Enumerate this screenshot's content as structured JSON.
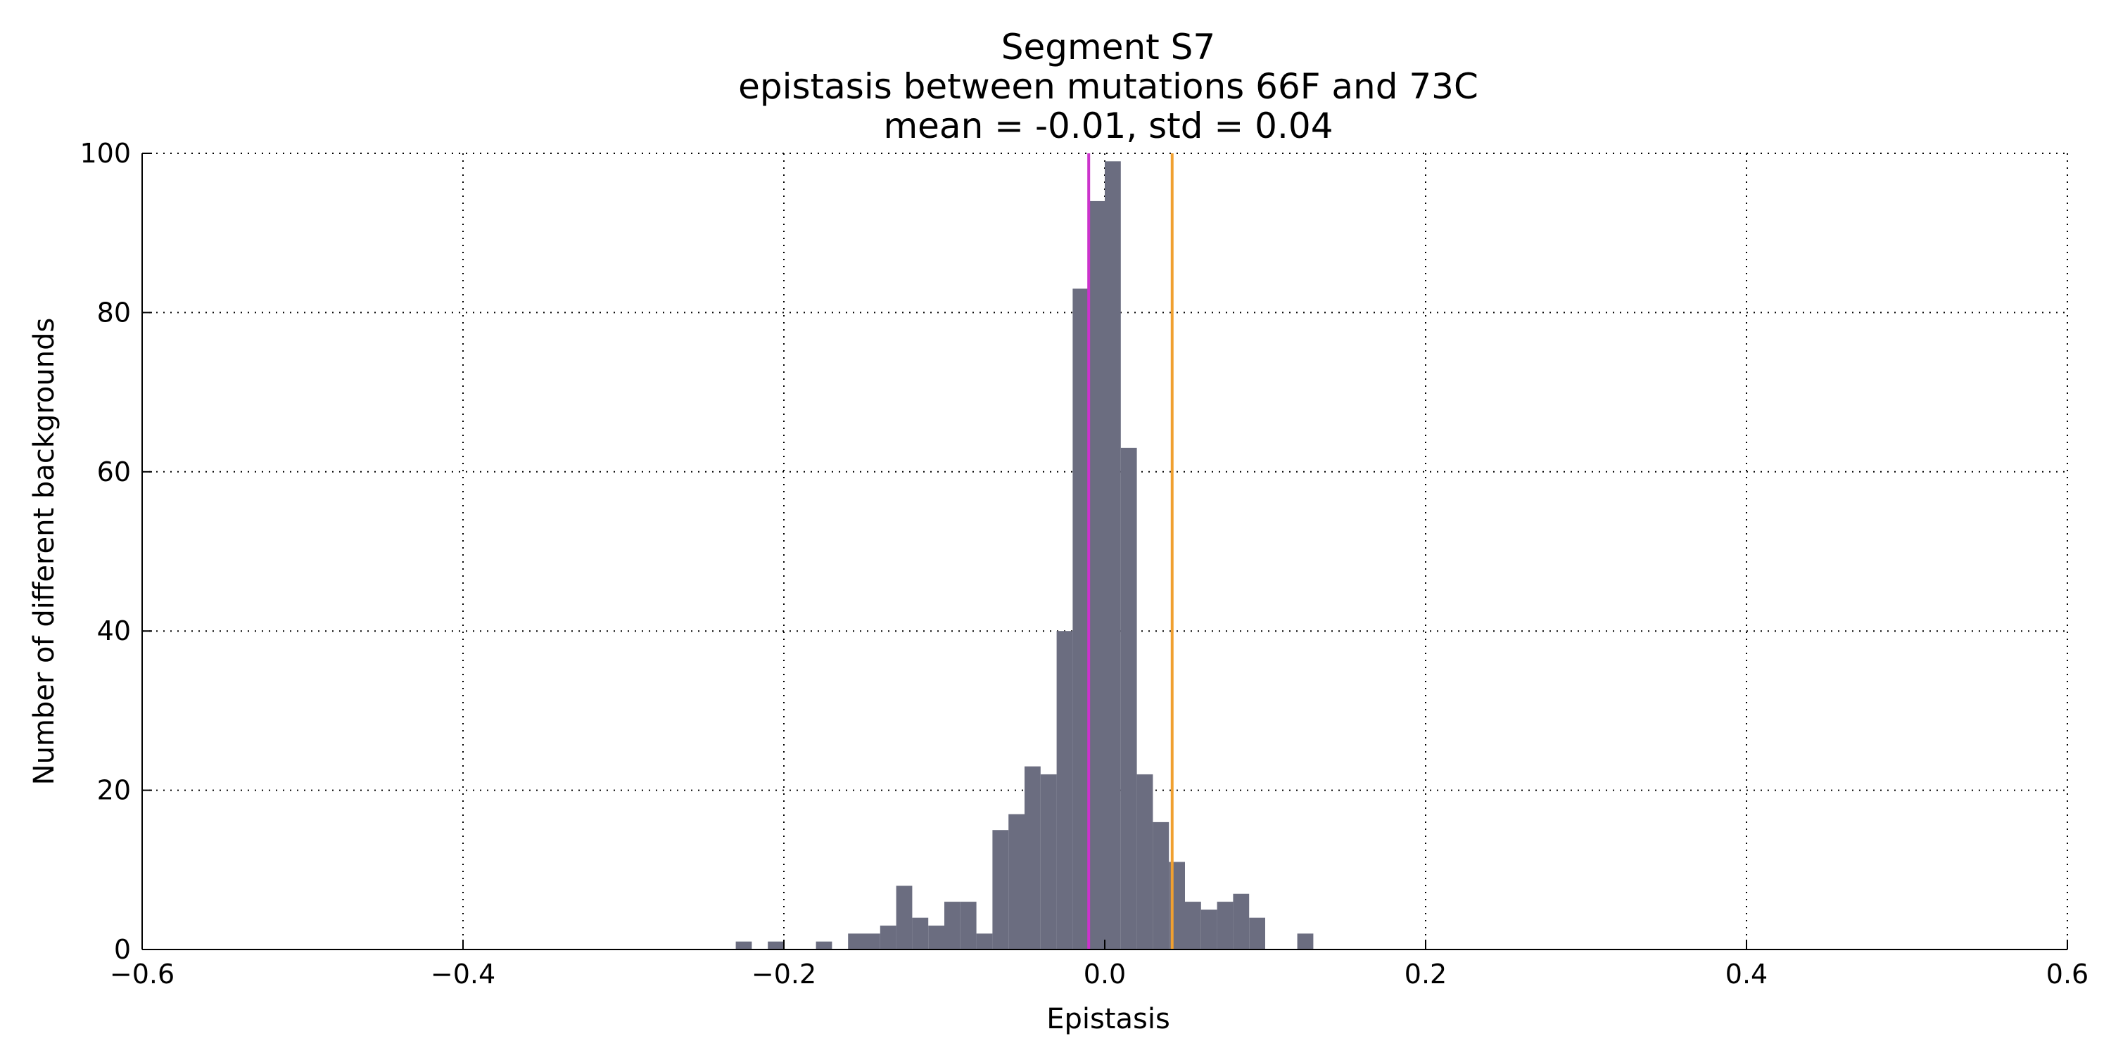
{
  "chart_data": {
    "type": "bar",
    "title_lines": [
      "Segment S7",
      "epistasis between mutations 66F and 73C",
      "mean = -0.01, std = 0.04"
    ],
    "xlabel": "Epistasis",
    "ylabel": "Number of different backgrounds",
    "xlim": [
      -0.6,
      0.6
    ],
    "ylim": [
      0,
      100
    ],
    "xticks": [
      -0.6,
      -0.4,
      -0.2,
      0.0,
      0.2,
      0.4,
      0.6
    ],
    "xtick_labels": [
      "−0.6",
      "−0.4",
      "−0.2",
      "0.0",
      "0.2",
      "0.4",
      "0.6"
    ],
    "yticks": [
      0,
      20,
      40,
      60,
      80,
      100
    ],
    "ytick_labels": [
      "0",
      "20",
      "40",
      "60",
      "80",
      "100"
    ],
    "grid": true,
    "bar_color": "#6b6d80",
    "bin_width": 0.01,
    "bins": [
      {
        "x0": -0.23,
        "count": 1
      },
      {
        "x0": -0.21,
        "count": 1
      },
      {
        "x0": -0.18,
        "count": 1
      },
      {
        "x0": -0.16,
        "count": 2
      },
      {
        "x0": -0.15,
        "count": 2
      },
      {
        "x0": -0.14,
        "count": 3
      },
      {
        "x0": -0.13,
        "count": 8
      },
      {
        "x0": -0.12,
        "count": 4
      },
      {
        "x0": -0.11,
        "count": 3
      },
      {
        "x0": -0.1,
        "count": 6
      },
      {
        "x0": -0.09,
        "count": 6
      },
      {
        "x0": -0.08,
        "count": 2
      },
      {
        "x0": -0.07,
        "count": 15
      },
      {
        "x0": -0.06,
        "count": 17
      },
      {
        "x0": -0.05,
        "count": 23
      },
      {
        "x0": -0.04,
        "count": 22
      },
      {
        "x0": -0.03,
        "count": 40
      },
      {
        "x0": -0.02,
        "count": 83
      },
      {
        "x0": -0.01,
        "count": 94
      },
      {
        "x0": 0.0,
        "count": 99
      },
      {
        "x0": 0.01,
        "count": 63
      },
      {
        "x0": 0.02,
        "count": 22
      },
      {
        "x0": 0.03,
        "count": 16
      },
      {
        "x0": 0.04,
        "count": 11
      },
      {
        "x0": 0.05,
        "count": 6
      },
      {
        "x0": 0.06,
        "count": 5
      },
      {
        "x0": 0.07,
        "count": 6
      },
      {
        "x0": 0.08,
        "count": 7
      },
      {
        "x0": 0.09,
        "count": 4
      },
      {
        "x0": 0.12,
        "count": 2
      }
    ],
    "vlines": [
      {
        "x": -0.01,
        "color": "#cc33cc"
      },
      {
        "x": 0.042,
        "color": "#f0a030"
      }
    ]
  }
}
